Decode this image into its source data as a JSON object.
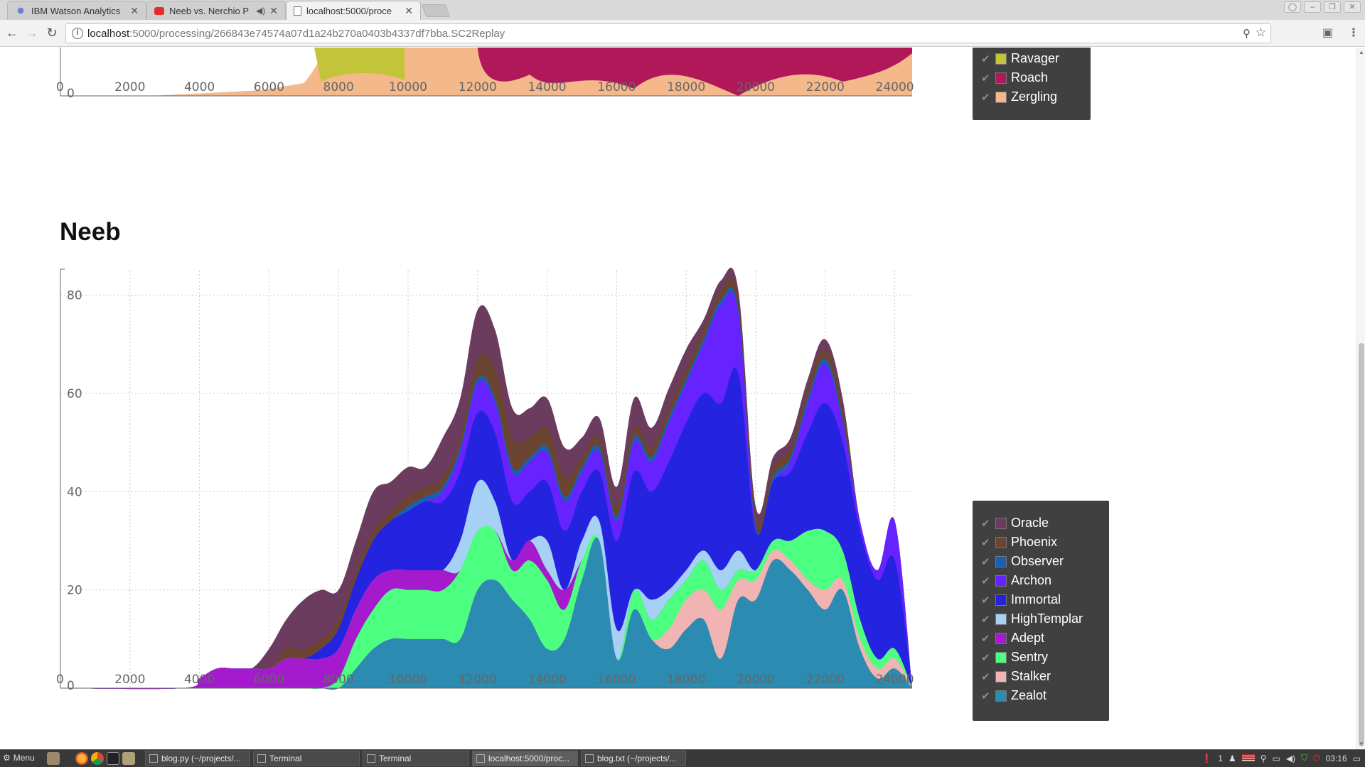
{
  "browser": {
    "tabs": [
      {
        "title": "IBM Watson Analytics",
        "favicon": "ibm-watson-icon",
        "active": false
      },
      {
        "title": "Neeb vs. Nerchio P",
        "favicon": "youtube-icon",
        "active": false
      },
      {
        "title": "localhost:5000/proce",
        "favicon": "page-icon",
        "active": true
      }
    ],
    "url_host": "localhost",
    "url_path": ":5000/processing/266843e74574a07d1a24b270a0403b4337df7bba.SC2Replay"
  },
  "top_chart": {
    "x_ticks": [
      "0",
      "2000",
      "4000",
      "6000",
      "8000",
      "10000",
      "12000",
      "14000",
      "16000",
      "18000",
      "20000",
      "22000",
      "24000"
    ],
    "y_zero_label": "0",
    "legend": [
      {
        "label": "Ravager",
        "color": "#c4c43a"
      },
      {
        "label": "Roach",
        "color": "#b0185a"
      },
      {
        "label": "Zergling",
        "color": "#f4b88b"
      }
    ]
  },
  "section": {
    "title": "Neeb"
  },
  "chart_data": {
    "type": "area",
    "stacked": true,
    "title": "Neeb",
    "xlabel": "",
    "ylabel": "",
    "xlim": [
      0,
      24500
    ],
    "ylim": [
      0,
      85
    ],
    "x_ticks": [
      "0",
      "2000",
      "4000",
      "6000",
      "8000",
      "10000",
      "12000",
      "14000",
      "16000",
      "18000",
      "20000",
      "22000",
      "24000"
    ],
    "y_ticks": [
      "0",
      "20",
      "40",
      "60",
      "80"
    ],
    "grid": true,
    "legend_position": "right",
    "x": [
      0,
      3500,
      4000,
      4500,
      5000,
      5500,
      6000,
      6500,
      7000,
      7500,
      8000,
      8500,
      9000,
      9500,
      10000,
      10500,
      11000,
      11500,
      12000,
      12500,
      13000,
      13500,
      14000,
      14500,
      15000,
      15500,
      16000,
      16500,
      17000,
      17500,
      18000,
      18500,
      19000,
      19500,
      20000,
      20500,
      21000,
      21500,
      22000,
      22500,
      23000,
      23500,
      24000,
      24500
    ],
    "series": [
      {
        "name": "Zealot",
        "color": "#2b8bb0",
        "values": [
          0,
          0,
          0,
          0,
          0,
          0,
          0,
          0,
          0,
          0,
          0,
          4,
          8,
          10,
          10,
          10,
          10,
          10,
          20,
          22,
          18,
          14,
          8,
          10,
          22,
          30,
          6,
          16,
          10,
          8,
          12,
          14,
          6,
          18,
          18,
          26,
          24,
          20,
          16,
          20,
          8,
          2,
          4,
          0
        ]
      },
      {
        "name": "Stalker",
        "color": "#f2b3b3",
        "values": [
          0,
          0,
          0,
          0,
          0,
          0,
          0,
          0,
          0,
          0,
          0,
          0,
          0,
          0,
          0,
          0,
          0,
          0,
          0,
          0,
          0,
          0,
          0,
          0,
          0,
          0,
          0,
          0,
          0,
          4,
          6,
          6,
          10,
          4,
          4,
          2,
          2,
          2,
          4,
          2,
          2,
          2,
          2,
          0
        ]
      },
      {
        "name": "Sentry",
        "color": "#4dff80",
        "values": [
          0,
          0,
          0,
          0,
          0,
          0,
          0,
          0,
          0,
          0,
          2,
          6,
          8,
          10,
          10,
          10,
          10,
          14,
          12,
          10,
          6,
          12,
          14,
          6,
          4,
          0,
          0,
          4,
          4,
          6,
          4,
          6,
          4,
          2,
          2,
          2,
          4,
          10,
          12,
          6,
          4,
          2,
          2,
          0
        ]
      },
      {
        "name": "Adept",
        "color": "#a41acc",
        "values": [
          0,
          0,
          2,
          4,
          4,
          4,
          4,
          6,
          6,
          6,
          6,
          6,
          6,
          4,
          4,
          4,
          4,
          0,
          0,
          0,
          2,
          4,
          2,
          4,
          0,
          0,
          0,
          0,
          0,
          0,
          0,
          0,
          0,
          0,
          0,
          0,
          0,
          0,
          0,
          0,
          0,
          0,
          0,
          0
        ]
      },
      {
        "name": "HighTemplar",
        "color": "#a6d1f5",
        "values": [
          0,
          0,
          0,
          0,
          0,
          0,
          0,
          0,
          0,
          0,
          0,
          0,
          0,
          0,
          0,
          0,
          0,
          6,
          10,
          6,
          0,
          0,
          6,
          0,
          4,
          4,
          6,
          0,
          4,
          2,
          2,
          2,
          4,
          4,
          0,
          0,
          0,
          0,
          0,
          0,
          0,
          0,
          0,
          0
        ]
      },
      {
        "name": "Immortal",
        "color": "#2323e0",
        "values": [
          0,
          0,
          0,
          0,
          0,
          0,
          0,
          0,
          0,
          2,
          4,
          6,
          8,
          10,
          12,
          14,
          14,
          14,
          14,
          14,
          12,
          10,
          12,
          12,
          10,
          10,
          18,
          24,
          22,
          26,
          30,
          32,
          34,
          36,
          8,
          12,
          14,
          20,
          26,
          22,
          18,
          16,
          18,
          0
        ]
      },
      {
        "name": "Archon",
        "color": "#6622ff",
        "values": [
          0,
          0,
          0,
          0,
          0,
          0,
          0,
          0,
          0,
          0,
          0,
          0,
          0,
          0,
          0,
          0,
          2,
          4,
          6,
          6,
          6,
          6,
          6,
          6,
          4,
          4,
          4,
          6,
          6,
          8,
          8,
          10,
          20,
          12,
          0,
          0,
          2,
          6,
          8,
          4,
          2,
          2,
          8,
          0
        ]
      },
      {
        "name": "Observer",
        "color": "#1a5fb4",
        "values": [
          0,
          0,
          0,
          0,
          0,
          0,
          0,
          0,
          0,
          0,
          0,
          0,
          0,
          0,
          1,
          1,
          1,
          1,
          1,
          1,
          1,
          1,
          1,
          1,
          1,
          1,
          1,
          1,
          1,
          1,
          1,
          1,
          1,
          1,
          1,
          1,
          1,
          1,
          1,
          1,
          0,
          0,
          0,
          0
        ]
      },
      {
        "name": "Phoenix",
        "color": "#6b4532",
        "values": [
          0,
          0,
          0,
          0,
          0,
          0,
          0,
          2,
          2,
          2,
          2,
          2,
          2,
          2,
          2,
          2,
          2,
          2,
          4,
          6,
          6,
          4,
          4,
          4,
          2,
          2,
          2,
          2,
          2,
          2,
          2,
          2,
          2,
          2,
          2,
          2,
          2,
          2,
          2,
          2,
          0,
          0,
          0,
          0
        ]
      },
      {
        "name": "Oracle",
        "color": "#6c3c5f",
        "values": [
          0,
          0,
          0,
          0,
          0,
          0,
          4,
          6,
          10,
          10,
          6,
          6,
          8,
          6,
          6,
          4,
          8,
          8,
          10,
          8,
          6,
          6,
          6,
          6,
          4,
          4,
          4,
          6,
          4,
          4,
          4,
          2,
          2,
          2,
          2,
          2,
          2,
          2,
          2,
          2,
          0,
          0,
          0,
          0
        ]
      }
    ]
  },
  "taskbar": {
    "menu_label": "Menu",
    "tasks": [
      {
        "label": "blog.py (~/projects/...",
        "active": false
      },
      {
        "label": "Terminal",
        "active": false
      },
      {
        "label": "Terminal",
        "active": false
      },
      {
        "label": "localhost:5000/proc...",
        "active": true
      },
      {
        "label": "blog.txt (~/projects/...",
        "active": false
      }
    ],
    "tray_count": "1",
    "clock": "03:16"
  }
}
